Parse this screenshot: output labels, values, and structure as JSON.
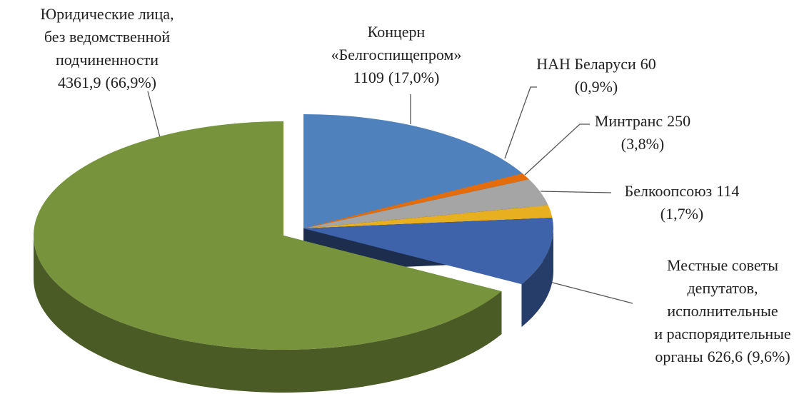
{
  "chart_data": {
    "type": "pie3d",
    "categories": [
      [
        "Юридические лица,",
        "без ведомственной",
        "подчиненности"
      ],
      [
        "Концерн",
        "«Белгоспищепром»"
      ],
      [
        "НАН Беларуси"
      ],
      [
        "Минтранс"
      ],
      [
        "Белкоопсоюз"
      ],
      [
        "Местные советы",
        "депутатов,",
        "исполнительные",
        "и распорядительные",
        "органы"
      ]
    ],
    "values": [
      4361.9,
      1109,
      60,
      250,
      114,
      626.6
    ],
    "value_labels": [
      "4361,9",
      "1109",
      "60",
      "250",
      "114",
      "626,6"
    ],
    "percents": [
      66.9,
      17.0,
      0.9,
      3.8,
      1.7,
      9.6
    ],
    "percent_labels": [
      "(66,9%)",
      "(17,0%)",
      "(0,9%)",
      "(3,8%)",
      "(1,7%)",
      "(9,6%)"
    ],
    "colors": [
      "#77933c",
      "#4f81bd",
      "#e46c0a",
      "#a5a5a5",
      "#e8b020",
      "#3f63aa"
    ]
  }
}
